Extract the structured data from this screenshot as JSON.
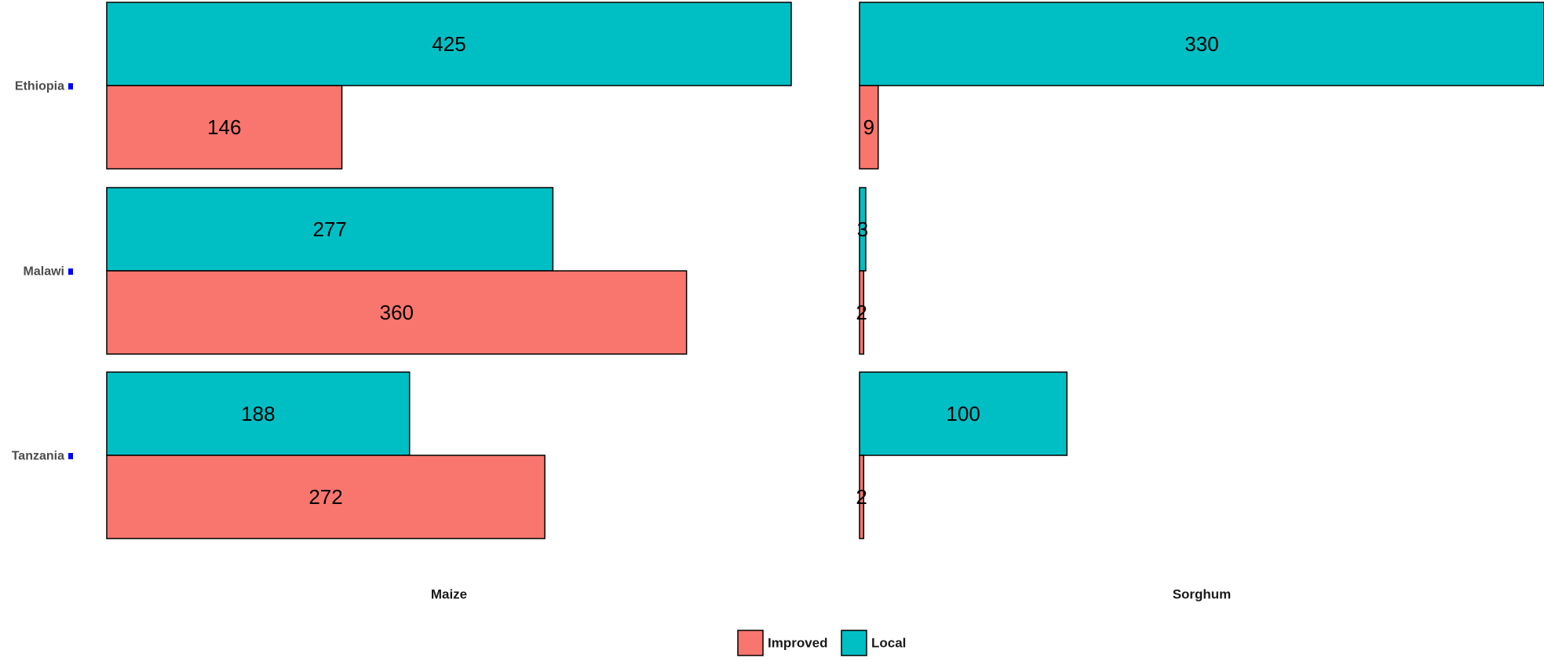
{
  "chart_data": {
    "type": "bar",
    "orientation": "horizontal",
    "countries": [
      "Ethiopia",
      "Malawi",
      "Tanzania"
    ],
    "panels": [
      {
        "name": "Maize",
        "series": [
          {
            "name": "Local",
            "values": [
              425,
              277,
              188
            ]
          },
          {
            "name": "Improved",
            "values": [
              146,
              360,
              272
            ]
          }
        ]
      },
      {
        "name": "Sorghum",
        "series": [
          {
            "name": "Local",
            "values": [
              330,
              3,
              100
            ]
          },
          {
            "name": "Improved",
            "values": [
              9,
              2,
              2
            ]
          }
        ]
      }
    ],
    "legend": {
      "position": "bottom",
      "entries": [
        {
          "name": "Improved",
          "color": "#F8766D"
        },
        {
          "name": "Local",
          "color": "#00BFC4"
        }
      ]
    },
    "colors": {
      "Improved": "#F8766D",
      "Local": "#00BFC4",
      "tick_mark": "#0000ff"
    },
    "grid": false,
    "data_labels": true
  }
}
